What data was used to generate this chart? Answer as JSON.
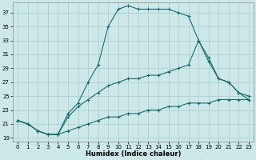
{
  "xlabel": "Humidex (Indice chaleur)",
  "bg_color": "#cce8e8",
  "grid_color": "#aacccc",
  "line_color": "#1a6b6b",
  "xlim": [
    -0.5,
    23.5
  ],
  "ylim": [
    18.5,
    38.5
  ],
  "yticks": [
    19,
    21,
    23,
    25,
    27,
    29,
    31,
    33,
    35,
    37
  ],
  "xticks": [
    0,
    1,
    2,
    3,
    4,
    5,
    6,
    7,
    8,
    9,
    10,
    11,
    12,
    13,
    14,
    15,
    16,
    17,
    18,
    19,
    20,
    21,
    22,
    23
  ],
  "line_min_x": [
    0,
    1,
    2,
    3,
    4,
    5,
    6,
    7,
    8,
    9,
    10,
    11,
    12,
    13,
    14,
    15,
    16,
    17,
    18,
    19,
    20,
    21,
    22,
    23
  ],
  "line_min_y": [
    21.5,
    21.0,
    20.0,
    19.5,
    19.5,
    20.0,
    20.5,
    21.0,
    21.5,
    22.0,
    22.0,
    22.5,
    22.5,
    23.0,
    23.0,
    23.5,
    23.5,
    24.0,
    24.0,
    24.0,
    24.5,
    24.5,
    24.5,
    24.5
  ],
  "line_max_x": [
    0,
    1,
    2,
    3,
    4,
    5,
    6,
    7,
    8,
    9,
    10,
    11,
    12,
    13,
    14,
    15,
    16,
    17,
    18,
    19,
    20,
    21,
    22,
    23
  ],
  "line_max_y": [
    21.5,
    21.0,
    20.0,
    19.5,
    19.5,
    22.5,
    24.0,
    27.0,
    29.5,
    35.0,
    37.5,
    38.0,
    37.5,
    37.5,
    37.5,
    37.5,
    37.0,
    36.5,
    33.0,
    30.5,
    27.5,
    27.0,
    25.5,
    24.5
  ],
  "line_mid_x": [
    0,
    1,
    2,
    3,
    4,
    5,
    6,
    7,
    8,
    9,
    10,
    11,
    12,
    13,
    14,
    15,
    16,
    17,
    18,
    19,
    20,
    21,
    22,
    23
  ],
  "line_mid_y": [
    21.5,
    21.0,
    20.0,
    19.5,
    19.5,
    22.0,
    23.5,
    24.5,
    25.5,
    26.5,
    27.0,
    27.5,
    27.5,
    28.0,
    28.0,
    28.5,
    29.0,
    29.5,
    33.0,
    30.0,
    27.5,
    27.0,
    25.5,
    25.0
  ]
}
